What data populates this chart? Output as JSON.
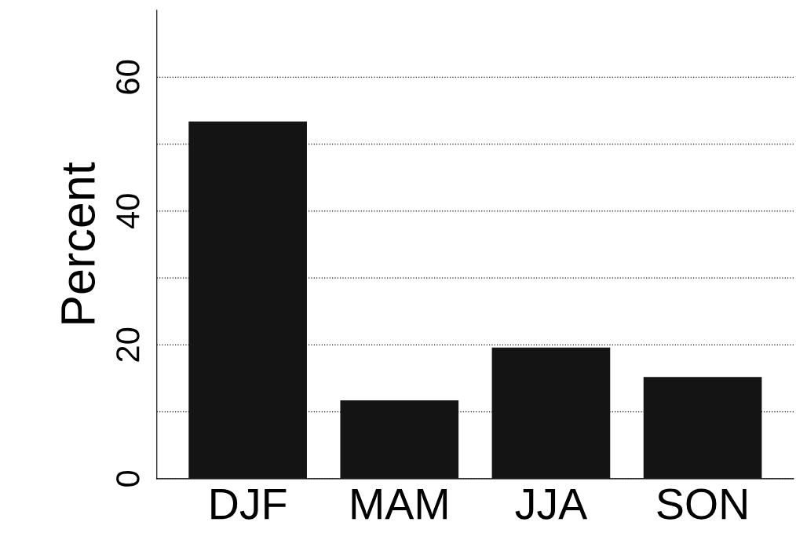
{
  "chart_data": {
    "type": "bar",
    "ylabel": "Percent",
    "categories": [
      "DJF",
      "MAM",
      "JJA",
      "SON"
    ],
    "values": [
      53.4,
      11.7,
      19.6,
      15.2
    ],
    "color": "#141414",
    "ylim": [
      0,
      70
    ],
    "yticks": [
      0,
      {
        "value": 10,
        "label": null
      },
      20,
      {
        "value": 30,
        "label": null
      },
      40,
      {
        "value": 50,
        "label": null
      },
      60
    ],
    "grid": "y"
  }
}
